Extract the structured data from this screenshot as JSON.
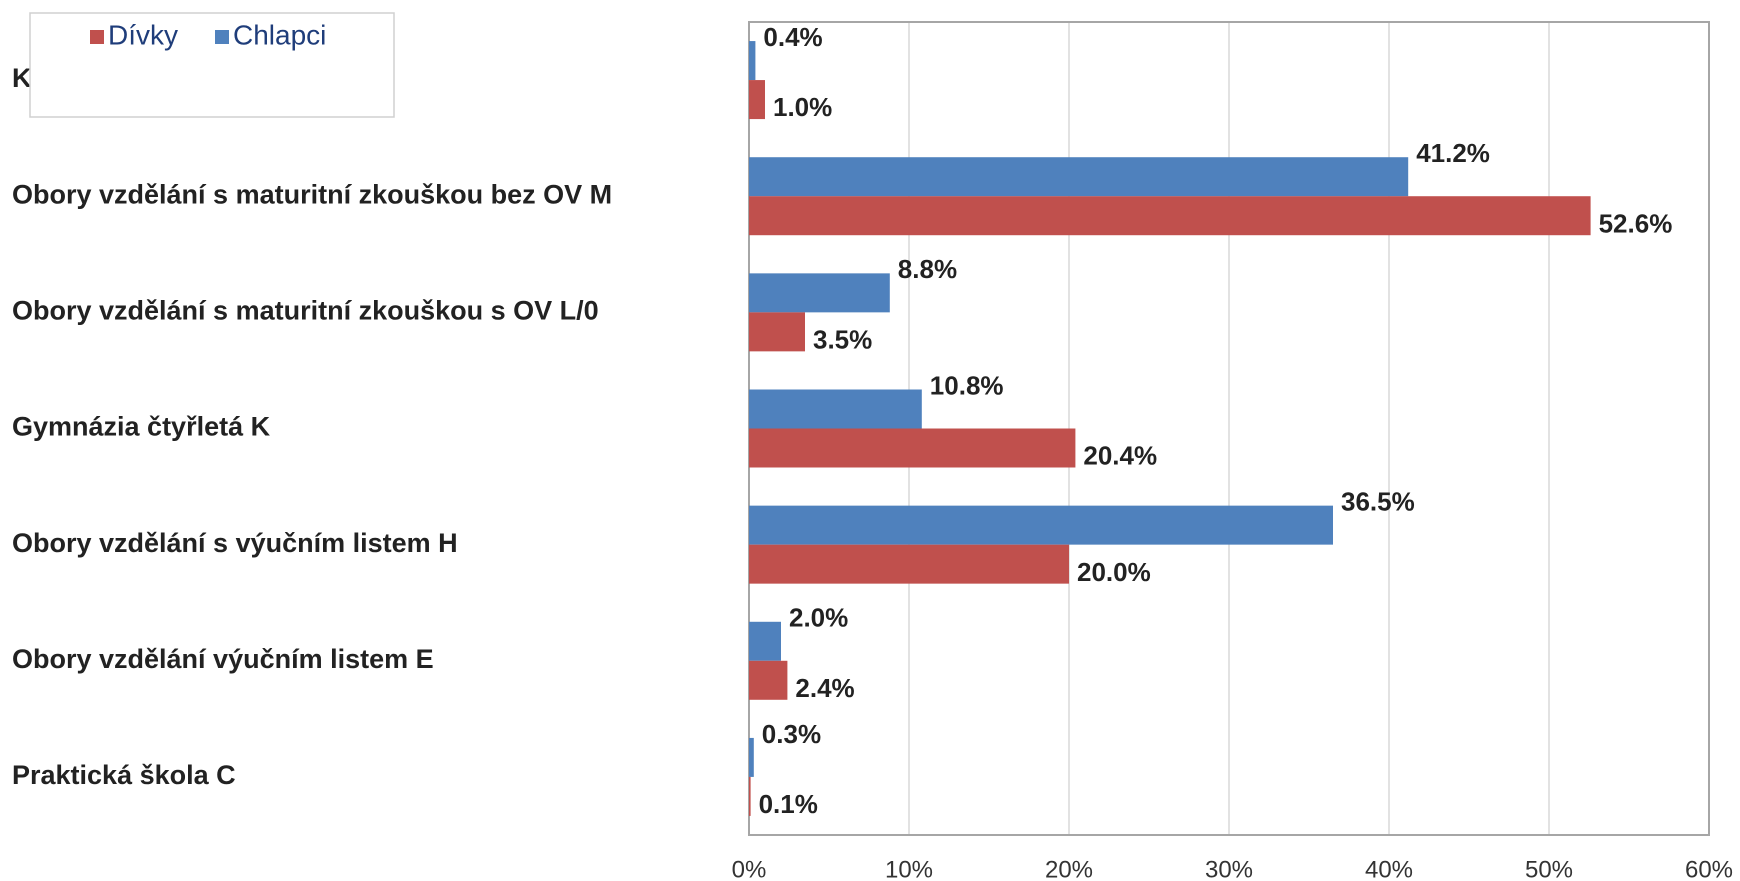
{
  "chart_data": {
    "type": "barh",
    "categories": [
      "K",
      "Obory vzdělání s maturitní zkouškou bez OV M",
      "Obory vzdělání s maturitní zkouškou s OV L/0",
      "Gymnázia čtyřletá K",
      "Obory vzdělání s výučním listem H",
      "Obory vzdělání výučním listem E",
      "Praktická škola C"
    ],
    "series": [
      {
        "name": "Chlapci",
        "color": "#4f81bd",
        "values": [
          0.4,
          41.2,
          8.8,
          10.8,
          36.5,
          2.0,
          0.3
        ],
        "value_labels": [
          "0.4%",
          "41.2%",
          "8.8%",
          "10.8%",
          "36.5%",
          "2.0%",
          "0.3%"
        ]
      },
      {
        "name": "Dívky",
        "color": "#c0504d",
        "values": [
          1.0,
          52.6,
          3.5,
          20.4,
          20.0,
          2.4,
          0.1
        ],
        "value_labels": [
          "1.0%",
          "52.6%",
          "3.5%",
          "20.4%",
          "20.0%",
          "2.4%",
          "0.1%"
        ]
      }
    ],
    "legend_order": [
      "Dívky",
      "Chlapci"
    ],
    "xlim": [
      0,
      60
    ],
    "xticks": [
      {
        "value": 0,
        "label": "0%"
      },
      {
        "value": 10,
        "label": "10%"
      },
      {
        "value": 20,
        "label": "20%"
      },
      {
        "value": 30,
        "label": "30%"
      },
      {
        "value": 40,
        "label": "40%"
      },
      {
        "value": 50,
        "label": "50%"
      },
      {
        "value": 60,
        "label": "60%"
      }
    ],
    "grid": true
  }
}
